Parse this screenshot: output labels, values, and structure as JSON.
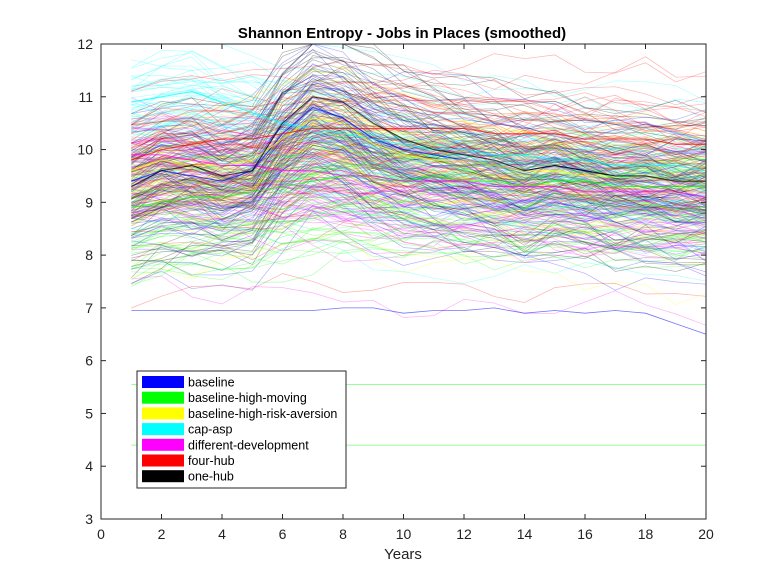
{
  "chart_data": {
    "type": "line",
    "title": "Shannon Entropy - Jobs in Places (smoothed)",
    "xlabel": "Years",
    "ylabel": "",
    "xlim": [
      0,
      20
    ],
    "ylim": [
      3,
      12
    ],
    "xticks": [
      0,
      2,
      4,
      6,
      8,
      10,
      12,
      14,
      16,
      18,
      20
    ],
    "yticks": [
      3,
      4,
      5,
      6,
      7,
      8,
      9,
      10,
      11,
      12
    ],
    "grid": false,
    "legend_position": "bottom-left",
    "x": [
      1,
      2,
      3,
      4,
      5,
      6,
      7,
      8,
      9,
      10,
      11,
      12,
      13,
      14,
      15,
      16,
      17,
      18,
      19,
      20
    ],
    "series": [
      {
        "name": "baseline",
        "color": "#0000ff",
        "values": [
          9.4,
          9.6,
          9.5,
          9.4,
          9.6,
          10.3,
          10.8,
          10.6,
          10.2,
          10.0,
          9.9,
          9.8,
          9.7,
          9.6,
          9.7,
          9.6,
          9.5,
          9.5,
          9.4,
          9.4
        ]
      },
      {
        "name": "baseline-high-moving",
        "color": "#00ff00",
        "values": [
          8.9,
          9.0,
          9.1,
          9.1,
          9.2,
          9.3,
          9.4,
          9.5,
          9.5,
          9.4,
          9.5,
          9.4,
          9.4,
          9.3,
          9.4,
          9.4,
          9.3,
          9.3,
          9.3,
          9.3
        ]
      },
      {
        "name": "baseline-high-risk-aversion",
        "color": "#ffff00",
        "values": [
          9.6,
          9.8,
          9.7,
          9.7,
          9.8,
          10.2,
          10.6,
          10.5,
          10.1,
          9.9,
          9.8,
          9.8,
          9.7,
          9.6,
          9.6,
          9.5,
          9.5,
          9.5,
          9.4,
          9.4
        ]
      },
      {
        "name": "cap-asp",
        "color": "#00ffff",
        "values": [
          10.9,
          11.0,
          11.1,
          10.9,
          10.7,
          10.5,
          10.4,
          10.3,
          10.2,
          10.1,
          10.0,
          10.0,
          9.9,
          9.9,
          9.8,
          9.8,
          9.7,
          9.7,
          9.7,
          9.6
        ]
      },
      {
        "name": "different-development",
        "color": "#ff00ff",
        "values": [
          9.9,
          9.9,
          9.8,
          9.7,
          9.7,
          9.6,
          9.6,
          9.5,
          9.5,
          9.4,
          9.4,
          9.4,
          9.3,
          9.3,
          9.3,
          9.2,
          9.2,
          9.2,
          9.2,
          9.1
        ]
      },
      {
        "name": "four-hub",
        "color": "#ff0000",
        "values": [
          9.8,
          10.0,
          10.1,
          10.2,
          10.2,
          10.3,
          10.4,
          10.4,
          10.4,
          10.4,
          10.4,
          10.4,
          10.3,
          10.3,
          10.3,
          10.2,
          10.2,
          10.2,
          10.1,
          10.1
        ]
      },
      {
        "name": "one-hub",
        "color": "#000000",
        "values": [
          9.3,
          9.6,
          9.7,
          9.5,
          9.6,
          10.5,
          11.0,
          10.9,
          10.5,
          10.2,
          10.0,
          9.9,
          9.8,
          9.6,
          9.7,
          9.6,
          9.5,
          9.5,
          9.4,
          9.4
        ]
      }
    ],
    "flat_traces": [
      {
        "series": "baseline-high-moving",
        "values": [
          5.55,
          5.55,
          5.55,
          5.55,
          5.55,
          5.55,
          5.55,
          5.55,
          5.55,
          5.55,
          5.55,
          5.55,
          5.55,
          5.55,
          5.55,
          5.55,
          5.55,
          5.55,
          5.55,
          5.55
        ]
      },
      {
        "series": "baseline-high-moving",
        "values": [
          4.4,
          4.4,
          4.4,
          4.4,
          4.4,
          4.4,
          4.4,
          4.4,
          4.4,
          4.4,
          4.4,
          4.4,
          4.4,
          4.4,
          4.4,
          4.4,
          4.4,
          4.4,
          4.4,
          4.4
        ]
      },
      {
        "series": "baseline",
        "values": [
          6.95,
          6.95,
          6.95,
          6.95,
          6.95,
          6.95,
          6.95,
          7.0,
          7.0,
          6.9,
          6.95,
          6.95,
          7.0,
          6.9,
          6.95,
          6.9,
          6.95,
          6.9,
          6.7,
          6.5
        ]
      }
    ]
  }
}
